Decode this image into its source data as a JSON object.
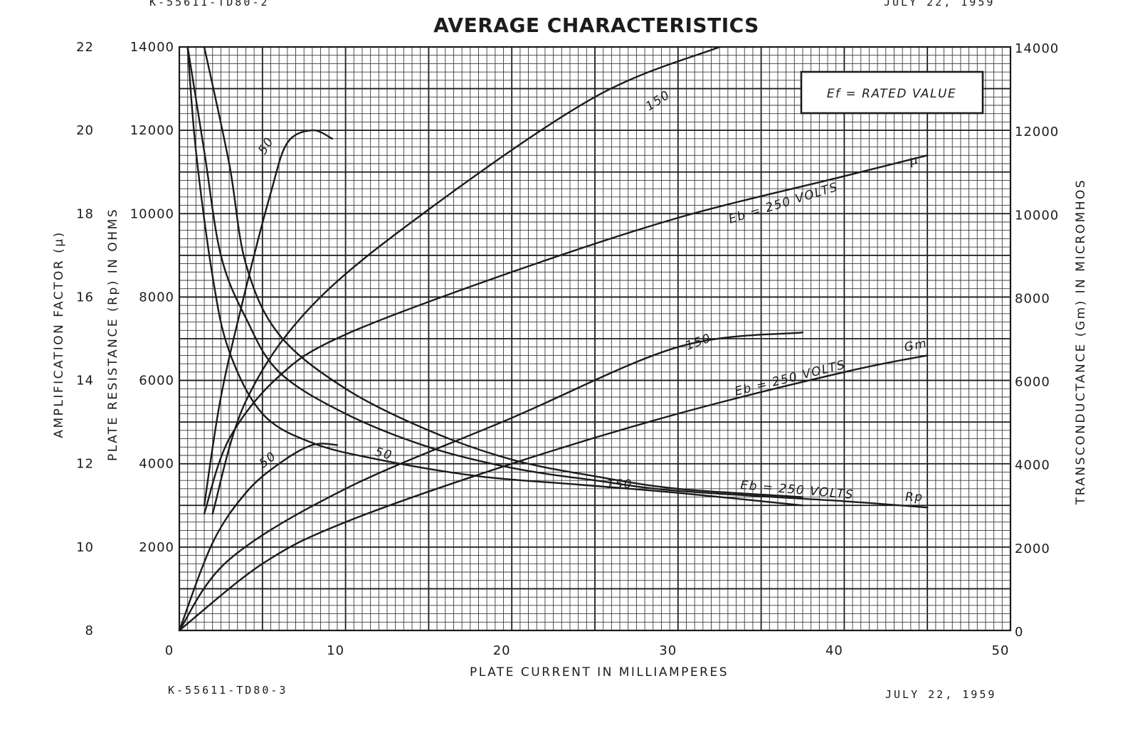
{
  "page": {
    "doc_code_top": "K-55611-TD80-2",
    "date_top": "JULY 22, 1959",
    "doc_code_bottom": "K-55611-TD80-3",
    "date_bottom": "JULY 22, 1959"
  },
  "chart_data": {
    "type": "line",
    "title": "AVERAGE CHARACTERISTICS",
    "xlabel": "PLATE CURRENT IN MILLIAMPERES",
    "ylabel_left_outer": "AMPLIFICATION FACTOR (μ)",
    "ylabel_left_inner": "PLATE RESISTANCE (Rp) IN OHMS",
    "ylabel_right": "TRANSCONDUCTANCE (Gm) IN MICROMHOS",
    "xlim": [
      0,
      50
    ],
    "ylim_left_outer": [
      8,
      22
    ],
    "ylim_left_inner": [
      0,
      14000
    ],
    "ylim_right": [
      0,
      14000
    ],
    "x_ticks": [
      "0",
      "10",
      "20",
      "30",
      "40",
      "50"
    ],
    "y_ticks_left_outer": [
      "8",
      "10",
      "12",
      "14",
      "16",
      "18",
      "20",
      "22"
    ],
    "y_ticks_left_inner": [
      "2000",
      "4000",
      "6000",
      "8000",
      "10000",
      "12000",
      "14000"
    ],
    "y_ticks_right": [
      "0",
      "2000",
      "4000",
      "6000",
      "8000",
      "10000",
      "12000",
      "14000"
    ],
    "grid": true,
    "note_box": {
      "text": "Ef = RATED VALUE",
      "placement": "top-right"
    },
    "series": [
      {
        "name": "μ",
        "family": "mu",
        "eb": "50",
        "points": [
          [
            1.5,
            11
          ],
          [
            2.5,
            13.6
          ],
          [
            4,
            16.2
          ],
          [
            5.5,
            18.5
          ],
          [
            6.5,
            19.7
          ],
          [
            8,
            20
          ],
          [
            9.2,
            19.8
          ]
        ]
      },
      {
        "family": "mu",
        "eb": "150",
        "points": [
          [
            2,
            10.8
          ],
          [
            4,
            13.5
          ],
          [
            8,
            15.8
          ],
          [
            15,
            18.1
          ],
          [
            25,
            20.8
          ],
          [
            32.5,
            23.1
          ]
        ]
      },
      {
        "family": "mu",
        "eb": "250",
        "points": [
          [
            1.5,
            10.8
          ],
          [
            3,
            12.6
          ],
          [
            6,
            14.1
          ],
          [
            10,
            15.1
          ],
          [
            20,
            16.6
          ],
          [
            30,
            17.9
          ],
          [
            40,
            18.9
          ],
          [
            45,
            19.4
          ]
        ]
      },
      {
        "name": "Gm",
        "family": "gm",
        "eb": "50",
        "points": [
          [
            0,
            0
          ],
          [
            2,
            2100
          ],
          [
            4,
            3300
          ],
          [
            6,
            4000
          ],
          [
            8,
            4450
          ],
          [
            9.5,
            4450
          ]
        ]
      },
      {
        "family": "gm",
        "eb": "150",
        "points": [
          [
            0,
            0
          ],
          [
            3,
            1700
          ],
          [
            10,
            3400
          ],
          [
            20,
            5100
          ],
          [
            30,
            6800
          ],
          [
            37.5,
            7150
          ]
        ]
      },
      {
        "family": "gm",
        "eb": "250",
        "points": [
          [
            0,
            0
          ],
          [
            5,
            1600
          ],
          [
            10,
            2600
          ],
          [
            20,
            4000
          ],
          [
            30,
            5200
          ],
          [
            40,
            6200
          ],
          [
            45,
            6600
          ]
        ]
      },
      {
        "name": "Rp",
        "family": "rp",
        "eb": "50",
        "points": [
          [
            0.5,
            14000
          ],
          [
            1,
            11500
          ],
          [
            2,
            8500
          ],
          [
            3,
            6700
          ],
          [
            5,
            5200
          ],
          [
            8,
            4500
          ],
          [
            12,
            4100
          ],
          [
            18,
            3700
          ],
          [
            24,
            3500
          ],
          [
            30,
            3300
          ],
          [
            37.5,
            3000
          ]
        ]
      },
      {
        "family": "rp",
        "eb": "150",
        "points": [
          [
            1.5,
            14000
          ],
          [
            3,
            11200
          ],
          [
            4,
            8800
          ],
          [
            6,
            7100
          ],
          [
            10,
            5800
          ],
          [
            15,
            4800
          ],
          [
            20,
            4100
          ],
          [
            25,
            3700
          ],
          [
            30,
            3400
          ],
          [
            37.5,
            3200
          ]
        ]
      },
      {
        "family": "rp",
        "eb": "250",
        "points": [
          [
            0.5,
            14000
          ],
          [
            1.5,
            11500
          ],
          [
            2.5,
            9000
          ],
          [
            4,
            7500
          ],
          [
            6,
            6200
          ],
          [
            10,
            5200
          ],
          [
            15,
            4400
          ],
          [
            20,
            3900
          ],
          [
            25,
            3600
          ],
          [
            30,
            3350
          ],
          [
            40,
            3100
          ],
          [
            45,
            2950
          ]
        ]
      }
    ],
    "curve_labels": {
      "mu_50": "50",
      "mu_150": "150",
      "mu_250": "Eb = 250 VOLTS",
      "mu_end": "μ",
      "gm_50": "50",
      "gm_150": "150",
      "gm_250": "Eb = 250 VOLTS",
      "gm_end": "Gm",
      "rp_50": "50",
      "rp_150": "150",
      "rp_250": "Eb = 250 VOLTS",
      "rp_end": "Rp"
    }
  }
}
